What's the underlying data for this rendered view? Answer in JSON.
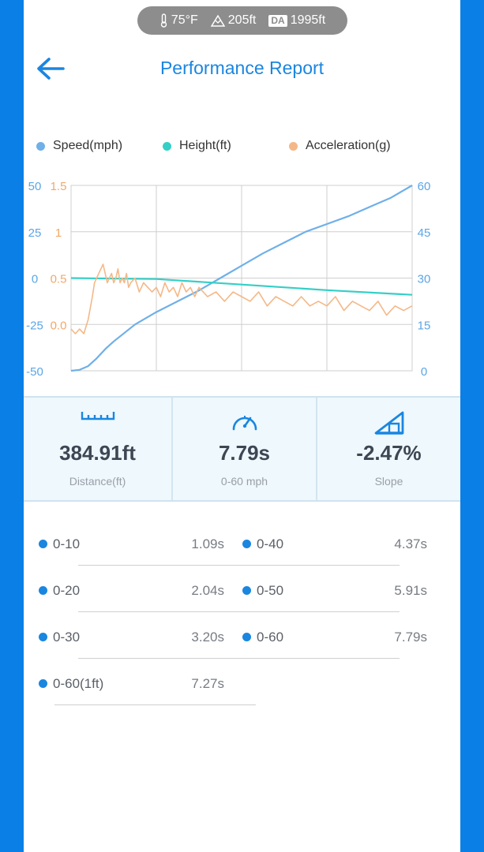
{
  "weather": {
    "temperature": "75°F",
    "altitude": "205ft",
    "da_badge": "DA",
    "density_altitude": "1995ft"
  },
  "header": {
    "title": "Performance Report"
  },
  "legend": [
    {
      "label": "Speed(mph)",
      "color": "#6fb0e8"
    },
    {
      "label": "Height(ft)",
      "color": "#34cfc6"
    },
    {
      "label": "Acceleration(g)",
      "color": "#f4b888"
    }
  ],
  "chart_data": {
    "type": "line",
    "x_range": [
      0,
      8
    ],
    "grid": true,
    "axes": {
      "height_ticks": [
        "50",
        "25",
        "0",
        "-25",
        "-50"
      ],
      "acceleration_ticks": [
        "1.5",
        "1",
        "0.5",
        "0.0"
      ],
      "speed_ticks": [
        "60",
        "45",
        "30",
        "15",
        "0"
      ],
      "height_range": [
        -50,
        50
      ],
      "acceleration_range": [
        -0.5,
        1.5
      ],
      "speed_range": [
        0,
        60
      ]
    },
    "series": [
      {
        "name": "Speed(mph)",
        "axis": "speed",
        "color": "#6fb0e8",
        "x": [
          0,
          0.2,
          0.4,
          0.6,
          0.8,
          1.0,
          1.5,
          2.0,
          2.5,
          3.0,
          3.5,
          4.0,
          4.5,
          5.0,
          5.5,
          6.0,
          6.5,
          7.0,
          7.5,
          8.0
        ],
        "values": [
          0,
          0.3,
          1.5,
          4,
          7,
          9.5,
          15,
          19,
          22.5,
          26,
          30,
          34,
          38,
          41.5,
          45,
          47.5,
          50,
          53,
          56,
          60
        ]
      },
      {
        "name": "Height(ft)",
        "axis": "height",
        "color": "#34cfc6",
        "x": [
          0,
          2,
          4,
          6,
          8
        ],
        "values": [
          0,
          -0.5,
          -3.5,
          -6.5,
          -9
        ]
      },
      {
        "name": "Acceleration(g)",
        "axis": "acceleration",
        "color": "#f4b888",
        "x": [
          0,
          0.1,
          0.2,
          0.3,
          0.4,
          0.5,
          0.55,
          0.6,
          0.65,
          0.7,
          0.75,
          0.8,
          0.85,
          0.9,
          0.95,
          1.0,
          1.05,
          1.1,
          1.15,
          1.2,
          1.25,
          1.3,
          1.35,
          1.4,
          1.5,
          1.6,
          1.7,
          1.8,
          1.9,
          2.0,
          2.1,
          2.2,
          2.3,
          2.4,
          2.5,
          2.6,
          2.7,
          2.8,
          2.9,
          3.0,
          3.2,
          3.4,
          3.6,
          3.8,
          4.0,
          4.2,
          4.4,
          4.6,
          4.8,
          5.0,
          5.2,
          5.4,
          5.6,
          5.8,
          6.0,
          6.2,
          6.4,
          6.6,
          6.8,
          7.0,
          7.2,
          7.4,
          7.6,
          7.8,
          8.0
        ],
        "values": [
          -0.05,
          -0.1,
          -0.05,
          -0.1,
          0.05,
          0.3,
          0.45,
          0.5,
          0.55,
          0.6,
          0.65,
          0.55,
          0.45,
          0.5,
          0.55,
          0.45,
          0.5,
          0.6,
          0.45,
          0.5,
          0.45,
          0.55,
          0.4,
          0.45,
          0.5,
          0.35,
          0.45,
          0.4,
          0.35,
          0.4,
          0.3,
          0.45,
          0.35,
          0.4,
          0.3,
          0.45,
          0.35,
          0.4,
          0.3,
          0.4,
          0.3,
          0.35,
          0.25,
          0.35,
          0.3,
          0.25,
          0.35,
          0.2,
          0.3,
          0.25,
          0.2,
          0.3,
          0.2,
          0.25,
          0.2,
          0.3,
          0.15,
          0.25,
          0.2,
          0.15,
          0.25,
          0.1,
          0.2,
          0.15,
          0.2
        ]
      }
    ]
  },
  "stats": [
    {
      "icon": "ruler-icon",
      "value": "384.91ft",
      "label": "Distance(ft)"
    },
    {
      "icon": "speedometer-icon",
      "value": "7.79s",
      "label": "0-60 mph"
    },
    {
      "icon": "slope-icon",
      "value": "-2.47%",
      "label": "Slope"
    }
  ],
  "splits": [
    {
      "name": "0-10",
      "time": "1.09s"
    },
    {
      "name": "0-40",
      "time": "4.37s"
    },
    {
      "name": "0-20",
      "time": "2.04s"
    },
    {
      "name": "0-50",
      "time": "5.91s"
    },
    {
      "name": "0-30",
      "time": "3.20s"
    },
    {
      "name": "0-60",
      "time": "7.79s"
    },
    {
      "name": "0-60(1ft)",
      "time": "7.27s"
    }
  ],
  "colors": {
    "accent": "#1a86e0",
    "background": "#0a7fe6"
  }
}
